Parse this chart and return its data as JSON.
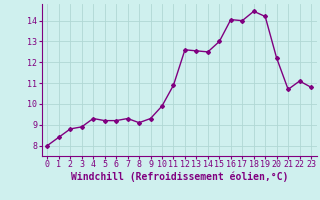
{
  "x": [
    0,
    1,
    2,
    3,
    4,
    5,
    6,
    7,
    8,
    9,
    10,
    11,
    12,
    13,
    14,
    15,
    16,
    17,
    18,
    19,
    20,
    21,
    22,
    23
  ],
  "y": [
    8.0,
    8.4,
    8.8,
    8.9,
    9.3,
    9.2,
    9.2,
    9.3,
    9.1,
    9.3,
    9.9,
    10.9,
    12.6,
    12.55,
    12.5,
    13.0,
    14.05,
    14.0,
    14.45,
    14.2,
    12.2,
    10.7,
    11.1,
    10.8
  ],
  "line_color": "#800080",
  "marker": "D",
  "marker_size": 2.0,
  "bg_color": "#cff0ee",
  "grid_color": "#b0d8d4",
  "xlabel": "Windchill (Refroidissement éolien,°C)",
  "xlabel_color": "#800080",
  "tick_color": "#800080",
  "ylim": [
    7.5,
    14.8
  ],
  "xlim": [
    -0.5,
    23.5
  ],
  "yticks": [
    8,
    9,
    10,
    11,
    12,
    13,
    14
  ],
  "xticks": [
    0,
    1,
    2,
    3,
    4,
    5,
    6,
    7,
    8,
    9,
    10,
    11,
    12,
    13,
    14,
    15,
    16,
    17,
    18,
    19,
    20,
    21,
    22,
    23
  ],
  "font_family": "monospace",
  "tick_fontsize": 6.0,
  "xlabel_fontsize": 7.0,
  "linewidth": 1.0
}
